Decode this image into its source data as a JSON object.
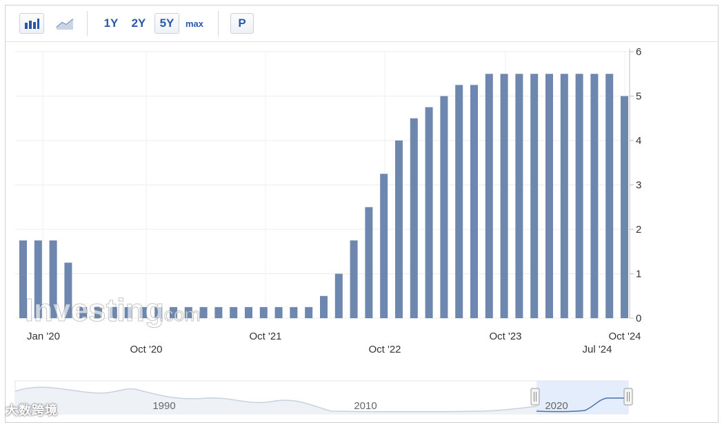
{
  "toolbar": {
    "bar_icon": "bar-chart-icon",
    "line_icon": "line-chart-icon",
    "ranges": [
      "1Y",
      "2Y",
      "5Y",
      "max"
    ],
    "selected_range": "5Y",
    "p_label": "P"
  },
  "watermark": {
    "logo_text": "Investing",
    "logo_suffix": ".com",
    "bottom_mark": "大数跨境"
  },
  "chart_data": {
    "type": "bar",
    "title": "",
    "xlabel": "",
    "ylabel": "",
    "ylim": [
      0,
      6
    ],
    "y_ticks": [
      "0",
      "1",
      "2",
      "3",
      "4",
      "5",
      "6"
    ],
    "y_axis_side": "right",
    "grid": true,
    "x_tick_labels_upper": [
      "Jan '20",
      "Oct '21",
      "Oct '23",
      "Oct '24"
    ],
    "x_tick_labels_lower": [
      "Oct '20",
      "Oct '22",
      "Jul '24"
    ],
    "values": [
      1.75,
      1.75,
      1.75,
      1.25,
      0.25,
      0.25,
      0.25,
      0.25,
      0.25,
      0.25,
      0.25,
      0.25,
      0.25,
      0.25,
      0.25,
      0.25,
      0.25,
      0.25,
      0.25,
      0.25,
      0.5,
      1.0,
      1.75,
      2.5,
      3.25,
      4.0,
      4.5,
      4.75,
      5.0,
      5.25,
      5.25,
      5.5,
      5.5,
      5.5,
      5.5,
      5.5,
      5.5,
      5.5,
      5.5,
      5.5,
      5.0
    ],
    "navigator": {
      "labels": [
        "1990",
        "2010",
        "2020"
      ]
    }
  }
}
